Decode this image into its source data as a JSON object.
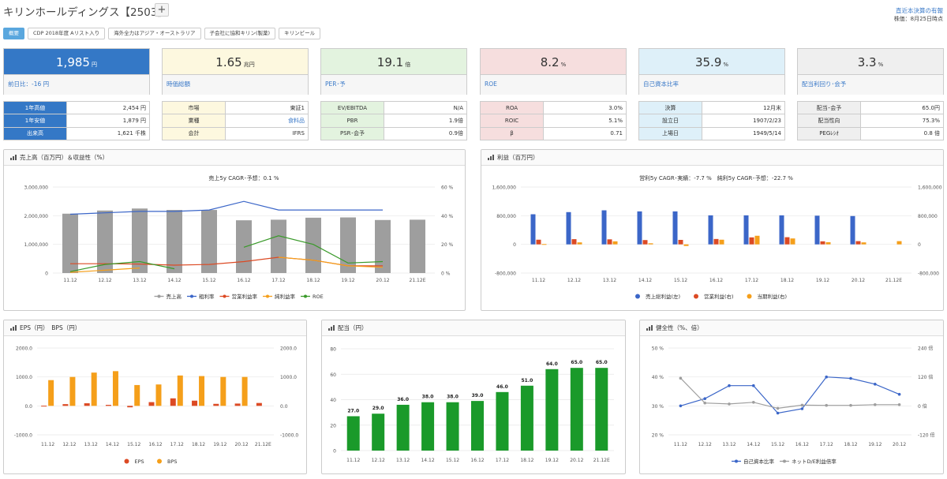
{
  "header": {
    "title": "キリンホールディングス【2503】",
    "add_label": "+",
    "right_link": "直近本決算の有報",
    "right_sub": "株価：8月25日時点"
  },
  "tags": [
    "概要",
    "CDP 2018年度 Aリスト入り",
    "海外全力はアジア・オーストラリア",
    "子会社に協和キリン(製薬)",
    "キリンビール"
  ],
  "cards": [
    {
      "value": "1,985",
      "unit": "円",
      "label": "前日比：-16 円",
      "bg": "#3478c6",
      "fg": "#ffffff"
    },
    {
      "value": "1.65",
      "unit": "兆円",
      "label": "時価総額",
      "bg": "#fdf8df",
      "fg": "#333333"
    },
    {
      "value": "19.1",
      "unit": "倍",
      "label": "PER･予",
      "bg": "#e3f3df",
      "fg": "#333333"
    },
    {
      "value": "8.2",
      "unit": "%",
      "label": "ROE",
      "bg": "#f6dede",
      "fg": "#333333"
    },
    {
      "value": "35.9",
      "unit": "%",
      "label": "自己資本比率",
      "bg": "#def0f9",
      "fg": "#333333"
    },
    {
      "value": "3.3",
      "unit": "%",
      "label": "配当利回り･会予",
      "bg": "#efefef",
      "fg": "#333333"
    }
  ],
  "tables": [
    {
      "kbg": "#3478c6",
      "kfg": "#ffffff",
      "rows": [
        [
          "1年高値",
          "2,454 円"
        ],
        [
          "1年安値",
          "1,879 円"
        ],
        [
          "出来高",
          "1,621 千株"
        ]
      ]
    },
    {
      "kbg": "#fdf8df",
      "kfg": "#333333",
      "rows": [
        [
          "市場",
          "東証1"
        ],
        [
          "業種",
          "食料品"
        ],
        [
          "会計",
          "IFRS"
        ]
      ]
    },
    {
      "kbg": "#e3f3df",
      "kfg": "#333333",
      "rows": [
        [
          "EV/EBITDA",
          "N/A"
        ],
        [
          "PBR",
          "1.9倍"
        ],
        [
          "PSR･会予",
          "0.9倍"
        ]
      ]
    },
    {
      "kbg": "#f6dede",
      "kfg": "#333333",
      "rows": [
        [
          "ROA",
          "3.0%"
        ],
        [
          "ROIC",
          "5.1%"
        ],
        [
          "β",
          "0.71"
        ]
      ]
    },
    {
      "kbg": "#def0f9",
      "kfg": "#333333",
      "rows": [
        [
          "決算",
          "12月末"
        ],
        [
          "設立日",
          "1907/2/23"
        ],
        [
          "上場日",
          "1949/5/14"
        ]
      ]
    },
    {
      "kbg": "#efefef",
      "kfg": "#333333",
      "rows": [
        [
          "配当･会予",
          "65.0円"
        ],
        [
          "配当性向",
          "75.3%"
        ],
        [
          "PEGﾚｼｵ",
          "0.8 倍"
        ]
      ]
    }
  ],
  "colors": {
    "link": "#3a79c8",
    "blue": "#3b66c8",
    "red": "#dc4a24",
    "orange": "#f59f1a",
    "green": "#3a9a2a",
    "gray": "#9e9e9e"
  },
  "chart_data": [
    {
      "panel": "売上高（百万円）＆収益性（%）",
      "type": "bar",
      "title": "売上5y CAGR･予想：0.1 %",
      "categories": [
        "11.12",
        "12.12",
        "13.12",
        "14.12",
        "15.12",
        "16.12",
        "17.12",
        "18.12",
        "19.12",
        "20.12",
        "21.12E"
      ],
      "ylim": [
        0,
        3000000
      ],
      "y_ticks": [
        "3,000,000",
        "2,000,000",
        "1,000,000",
        "0"
      ],
      "y2lim": [
        0,
        60
      ],
      "y2_ticks": [
        "60 %",
        "40 %",
        "20 %",
        "0 %"
      ],
      "series": [
        {
          "name": "売上高",
          "type": "bar",
          "axis": "left",
          "color": "#9e9e9e",
          "values": [
            2070000,
            2180000,
            2250000,
            2200000,
            2200000,
            1840000,
            1860000,
            1930000,
            1940000,
            1850000,
            1860000
          ]
        },
        {
          "name": "粗利率",
          "type": "line",
          "axis": "right",
          "color": "#3b66c8",
          "values": [
            41,
            42,
            43,
            43,
            44,
            50,
            44,
            44,
            44,
            44,
            null
          ]
        },
        {
          "name": "営業利益率",
          "type": "line",
          "axis": "right",
          "color": "#dc4a24",
          "values": [
            6.5,
            6.5,
            6.3,
            5.5,
            6,
            8,
            11,
            9,
            5,
            5,
            null
          ]
        },
        {
          "name": "純利益率",
          "type": "line",
          "axis": "right",
          "color": "#f59f1a",
          "values": [
            0.5,
            2,
            3.5,
            null,
            null,
            null,
            11,
            9,
            5,
            4,
            null
          ]
        },
        {
          "name": "ROE",
          "type": "line",
          "axis": "right",
          "color": "#3a9a2a",
          "values": [
            1,
            6,
            8,
            3,
            null,
            18,
            26,
            20,
            7,
            8,
            null
          ]
        }
      ]
    },
    {
      "panel": "利益（百万円）",
      "type": "bar",
      "title": "営利5y CAGR･実績：-7.7 %　純利5y CAGR･予想：-22.7 %",
      "categories": [
        "11.12",
        "12.12",
        "13.12",
        "14.12",
        "15.12",
        "16.12",
        "17.12",
        "18.12",
        "19.12",
        "20.12",
        "21.12E"
      ],
      "ylim": [
        -800000,
        1600000
      ],
      "y_ticks": [
        "1,600,000",
        "800,000",
        "0",
        "-800,000"
      ],
      "y2_ticks": [
        "1,600,000",
        "800,000",
        "0",
        "-800,000"
      ],
      "series": [
        {
          "name": "売上総利益(左)",
          "type": "bar",
          "axis": "left",
          "color": "#3b66c8",
          "values": [
            840000,
            900000,
            950000,
            920000,
            920000,
            810000,
            810000,
            810000,
            800000,
            790000,
            null
          ]
        },
        {
          "name": "営業利益(右)",
          "type": "bar",
          "axis": "right",
          "color": "#dc4a24",
          "values": [
            130000,
            145000,
            140000,
            120000,
            125000,
            150000,
            195000,
            200000,
            85000,
            90000,
            null
          ]
        },
        {
          "name": "当期利益(右)",
          "type": "bar",
          "axis": "right",
          "color": "#f59f1a",
          "values": [
            9000,
            55000,
            85000,
            30000,
            -45000,
            130000,
            240000,
            165000,
            60000,
            55000,
            90000
          ]
        }
      ]
    },
    {
      "panel": "EPS（円）　BPS（円）",
      "type": "bar",
      "categories": [
        "11.12",
        "12.12",
        "13.12",
        "14.12",
        "15.12",
        "16.12",
        "17.12",
        "18.12",
        "19.12",
        "20.12",
        "21.12E"
      ],
      "ylim": [
        -1000,
        2000
      ],
      "y_ticks": [
        "2000.0",
        "1000.0",
        "0.0",
        "-1000.0"
      ],
      "y2_ticks": [
        "2000.0",
        "1000.0",
        "0.0",
        "-1000.0"
      ],
      "series": [
        {
          "name": "EPS",
          "type": "bar",
          "color": "#dc4a24",
          "values": [
            5,
            60,
            90,
            35,
            -50,
            130,
            260,
            180,
            70,
            80,
            100
          ]
        },
        {
          "name": "BPS",
          "type": "bar",
          "color": "#f59f1a",
          "values": [
            890,
            1000,
            1150,
            1200,
            720,
            740,
            1050,
            1030,
            1000,
            1000,
            null
          ]
        }
      ]
    },
    {
      "panel": "配当（円）",
      "type": "bar",
      "categories": [
        "11.12",
        "12.12",
        "13.12",
        "14.12",
        "15.12",
        "16.12",
        "17.12",
        "18.12",
        "19.12",
        "20.12",
        "21.12E"
      ],
      "ylim": [
        0,
        80
      ],
      "y_ticks": [
        "80",
        "60",
        "40",
        "20",
        "0"
      ],
      "series": [
        {
          "type": "bar",
          "color": "#1a9a2a",
          "values": [
            27,
            29,
            36,
            38,
            38,
            39,
            46,
            51,
            64,
            65,
            65
          ],
          "labels": [
            "27.0",
            "29.0",
            "36.0",
            "38.0",
            "38.0",
            "39.0",
            "46.0",
            "51.0",
            "64.0",
            "65.0",
            "65.0"
          ]
        }
      ]
    },
    {
      "panel": "健全性（%、倍）",
      "type": "line",
      "categories": [
        "11.12",
        "12.12",
        "13.12",
        "14.12",
        "15.12",
        "16.12",
        "17.12",
        "18.12",
        "19.12",
        "20.12"
      ],
      "ylim": [
        20,
        50
      ],
      "y_ticks": [
        "50 %",
        "40 %",
        "30 %",
        "20 %"
      ],
      "y2lim": [
        -120,
        240
      ],
      "y2_ticks": [
        "240 倍",
        "120 倍",
        "0 倍",
        "-120 倍"
      ],
      "series": [
        {
          "name": "自己資本比率",
          "axis": "left",
          "color": "#3b66c8",
          "values": [
            30,
            32.5,
            37,
            37,
            27.5,
            29,
            40,
            39.5,
            37.5,
            34
          ]
        },
        {
          "name": "ネットD/E利益倍率",
          "axis": "right",
          "color": "#9e9e9e",
          "values": [
            115,
            12,
            8,
            15,
            -10,
            3,
            2,
            2,
            5,
            5
          ]
        }
      ]
    }
  ]
}
